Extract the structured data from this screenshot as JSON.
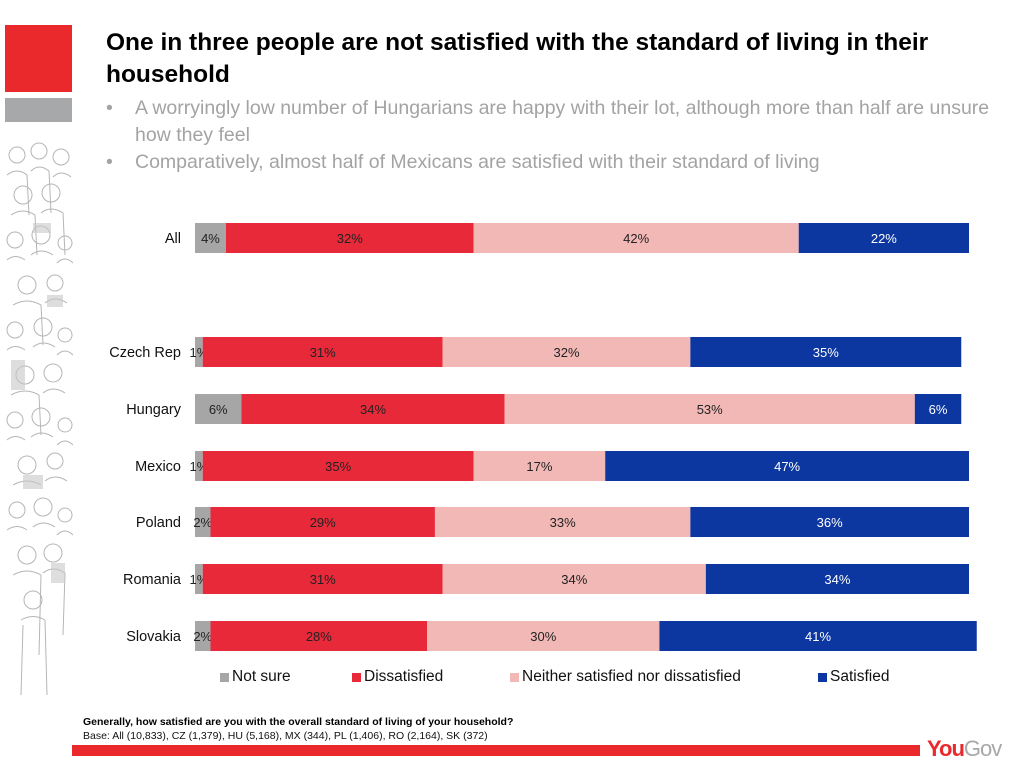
{
  "slide": {
    "title": "One in three people are not satisfied with the standard of living in their household",
    "bullets": [
      "A worryingly low number of Hungarians are happy with their lot, although more than half are unsure how they feel",
      "Comparatively, almost half of Mexicans are satisfied with their standard of living"
    ],
    "bullet_glyph": "•",
    "question": "Generally, how satisfied are you with the overall standard of living of your household?",
    "base": "Base: All (10,833), CZ (1,379), HU (5,168), MX (344), PL (1,406), RO (2,164), SK (372)",
    "logo": {
      "part1": "You",
      "part2": "Gov"
    },
    "colors": {
      "brand_red": "#e9292b",
      "brand_grey": "#a7a8aa"
    }
  },
  "chart_data": {
    "type": "bar",
    "orientation": "horizontal",
    "stacked": true,
    "percent_stacked": true,
    "title": "",
    "xlabel": "",
    "ylabel": "",
    "xlim": [
      0,
      100
    ],
    "grid": false,
    "legend_position": "bottom",
    "categories": [
      "All",
      "Czech Rep",
      "Hungary",
      "Mexico",
      "Poland",
      "Romania",
      "Slovakia"
    ],
    "series": [
      {
        "name": "Not sure",
        "color": "#a6a6a6",
        "label_color": "#222222",
        "values": [
          4,
          1,
          6,
          1,
          2,
          1,
          2
        ]
      },
      {
        "name": "Dissatisfied",
        "color": "#e8293a",
        "label_color": "#222222",
        "values": [
          32,
          31,
          34,
          35,
          29,
          31,
          28
        ]
      },
      {
        "name": "Neither satisfied nor dissatisfied",
        "color": "#f2b8b6",
        "label_color": "#222222",
        "values": [
          42,
          32,
          53,
          17,
          33,
          34,
          30
        ]
      },
      {
        "name": "Satisfied",
        "color": "#0c37a0",
        "label_color": "#ffffff",
        "values": [
          22,
          35,
          6,
          47,
          36,
          34,
          41
        ]
      }
    ],
    "value_suffix": "%"
  }
}
